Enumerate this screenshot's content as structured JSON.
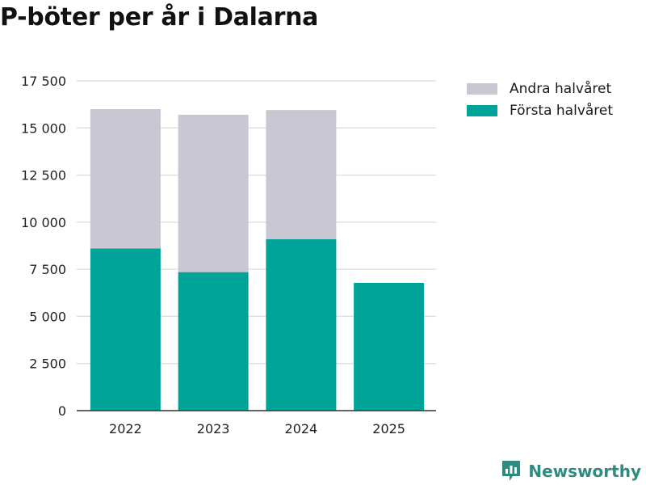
{
  "chart_data": {
    "type": "bar",
    "stacked": true,
    "title": "P-böter per år i Dalarna",
    "categories": [
      "2022",
      "2023",
      "2024",
      "2025"
    ],
    "series": [
      {
        "name": "Första halvåret",
        "color": "#00a398",
        "values": [
          8600,
          7350,
          9100,
          6780
        ]
      },
      {
        "name": "Andra halvåret",
        "color": "#c8c7d2",
        "values": [
          7400,
          8350,
          6850,
          0
        ]
      }
    ],
    "legend_order": [
      "Andra halvåret",
      "Första halvåret"
    ],
    "ylim": [
      0,
      17500
    ],
    "yticks": [
      0,
      2500,
      5000,
      7500,
      10000,
      12500,
      15000,
      17500
    ],
    "ytick_labels": [
      "0",
      "2 500",
      "5 000",
      "7 500",
      "10 000",
      "12 500",
      "15 000",
      "17 500"
    ],
    "xlabel": "",
    "ylabel": "",
    "grid": true
  },
  "brand": {
    "name": "Newsworthy",
    "icon": "newsworthy-logo-icon",
    "color": "#2e8b7f"
  }
}
